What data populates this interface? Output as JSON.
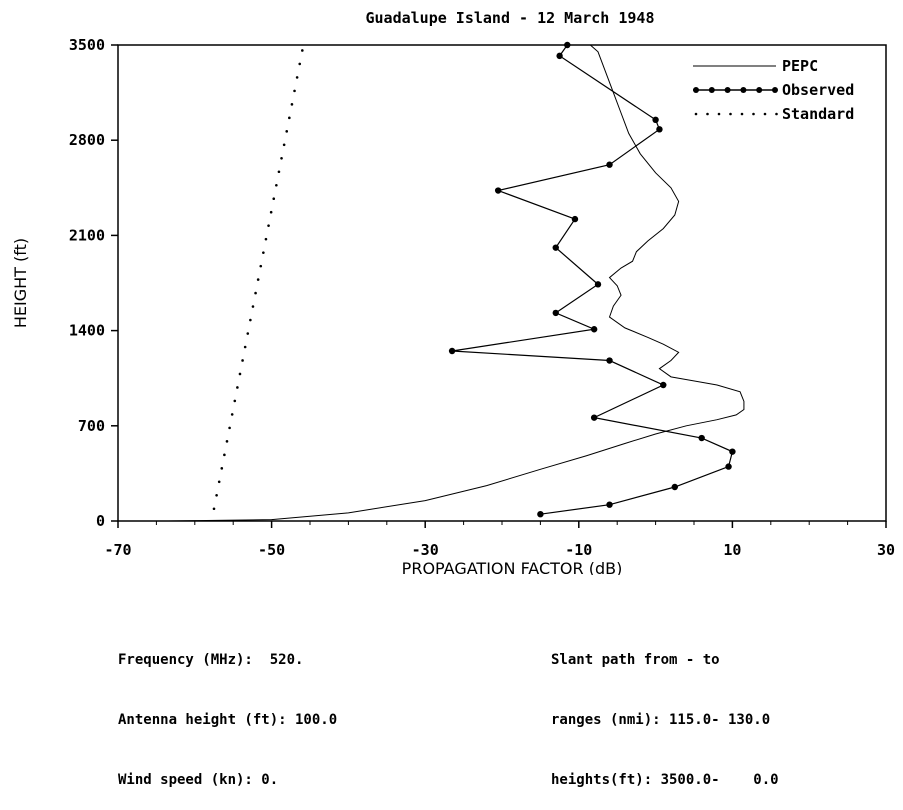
{
  "chart_data": {
    "type": "line",
    "title": "Guadalupe Island - 12 March 1948",
    "xlabel": "PROPAGATION FACTOR (dB)",
    "ylabel": "HEIGHT (ft)",
    "xlim": [
      -70,
      30
    ],
    "ylim": [
      0,
      3500
    ],
    "x_ticks": [
      -70,
      -50,
      -30,
      -10,
      10,
      30
    ],
    "x_tick_labels": [
      "-70",
      "-50",
      "-30",
      "-10",
      "10",
      "30"
    ],
    "y_ticks": [
      0,
      700,
      1400,
      2100,
      2800,
      3500
    ],
    "y_tick_labels": [
      "0",
      "700",
      "1400",
      "2100",
      "2800",
      "3500"
    ],
    "grid": false,
    "legend_position": "top-right",
    "series": [
      {
        "name": "PEPC",
        "style": "solid",
        "points": [
          [
            -63.5,
            0
          ],
          [
            -50,
            10
          ],
          [
            -40,
            60
          ],
          [
            -30,
            150
          ],
          [
            -22,
            260
          ],
          [
            -15,
            380
          ],
          [
            -9,
            480
          ],
          [
            -4,
            570
          ],
          [
            0,
            640
          ],
          [
            4,
            700
          ],
          [
            8,
            745
          ],
          [
            10.5,
            780
          ],
          [
            11.5,
            820
          ],
          [
            11.5,
            880
          ],
          [
            11,
            950
          ],
          [
            8,
            1000
          ],
          [
            2,
            1060
          ],
          [
            0.5,
            1120
          ],
          [
            2,
            1180
          ],
          [
            3,
            1240
          ],
          [
            1,
            1300
          ],
          [
            -1,
            1350
          ],
          [
            -4,
            1420
          ],
          [
            -6,
            1500
          ],
          [
            -5.5,
            1580
          ],
          [
            -4.5,
            1660
          ],
          [
            -5,
            1730
          ],
          [
            -6,
            1790
          ],
          [
            -4.5,
            1860
          ],
          [
            -3,
            1910
          ],
          [
            -2.5,
            1980
          ],
          [
            -1,
            2060
          ],
          [
            1,
            2150
          ],
          [
            2.5,
            2250
          ],
          [
            3,
            2350
          ],
          [
            2,
            2450
          ],
          [
            0,
            2560
          ],
          [
            -2,
            2700
          ],
          [
            -3.5,
            2850
          ],
          [
            -4.5,
            3000
          ],
          [
            -5.5,
            3150
          ],
          [
            -6.5,
            3300
          ],
          [
            -7.5,
            3450
          ],
          [
            -8.5,
            3500
          ]
        ]
      },
      {
        "name": "Observed",
        "style": "line-markers",
        "points": [
          [
            -15,
            50
          ],
          [
            -6,
            120
          ],
          [
            2.5,
            250
          ],
          [
            9.5,
            400
          ],
          [
            10,
            510
          ],
          [
            6,
            610
          ],
          [
            -8,
            760
          ],
          [
            1,
            1000
          ],
          [
            -6,
            1180
          ],
          [
            -26.5,
            1250
          ],
          [
            -8,
            1410
          ],
          [
            -13,
            1530
          ],
          [
            -7.5,
            1740
          ],
          [
            -13,
            2010
          ],
          [
            -10.5,
            2220
          ],
          [
            -20.5,
            2430
          ],
          [
            -6,
            2620
          ],
          [
            0.5,
            2880
          ],
          [
            0,
            2950
          ],
          [
            -12.5,
            3420
          ],
          [
            -11.5,
            3500
          ]
        ]
      },
      {
        "name": "Standard",
        "style": "dotted",
        "points": [
          [
            -57.5,
            90
          ],
          [
            -46,
            3460
          ]
        ]
      }
    ]
  },
  "info": {
    "left": [
      "Frequency (MHz):  520.",
      "Antenna height (ft): 100.0",
      "Wind speed (kn): 0."
    ],
    "right": [
      "Slant path from - to",
      "ranges (nmi): 115.0- 130.0",
      "heights(ft): 3500.0-    0.0"
    ]
  }
}
